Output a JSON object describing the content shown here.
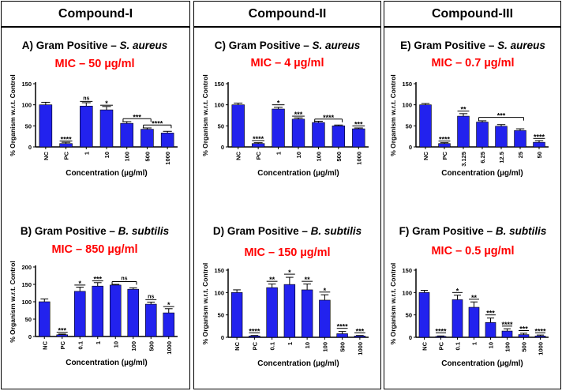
{
  "columns": [
    {
      "header": "Compound-I"
    },
    {
      "header": "Compound-II"
    },
    {
      "header": "Compound-III"
    }
  ],
  "colors": {
    "bar": "#2222ee",
    "mic": "#ff0000",
    "axis": "#000000"
  },
  "chart_data": [
    {
      "type": "bar",
      "title_prefix": "A) Gram Positive – ",
      "organism": "S. aureus",
      "subtitle": "MIC – 50 µg/ml",
      "xlabel": "Concentration (µg/ml)",
      "ylabel": "% Organism w.r.t. Control",
      "categories": [
        "NC",
        "PC",
        "1",
        "10",
        "100",
        "500",
        "1000"
      ],
      "values": [
        100,
        8,
        97,
        88,
        56,
        42,
        33
      ],
      "errors": [
        6,
        3,
        8,
        8,
        4,
        3,
        4
      ],
      "ylim": [
        0,
        150
      ],
      "yticks": [
        0,
        50,
        100,
        150
      ],
      "annotations": [
        {
          "label": "****",
          "at": 1,
          "y": 14
        },
        {
          "label": "ns",
          "at": 2,
          "y": 108
        },
        {
          "label": "*",
          "at": 3,
          "y": 99
        },
        {
          "label": "***",
          "from": 4,
          "to": 5,
          "y": 67
        },
        {
          "label": "****",
          "from": 5,
          "to": 6,
          "y": 52
        }
      ]
    },
    {
      "type": "bar",
      "title_prefix": "C) Gram Positive – ",
      "organism": "S. aureus",
      "subtitle": "MIC – 4 µg/ml",
      "xlabel": "Concentration (µg/ml)",
      "ylabel": "% Organism w.r.t. Control",
      "categories": [
        "NC",
        "PC",
        "1",
        "10",
        "100",
        "500",
        "1000"
      ],
      "values": [
        100,
        8,
        90,
        66,
        58,
        50,
        43
      ],
      "errors": [
        4,
        2,
        4,
        3,
        3,
        2,
        2
      ],
      "ylim": [
        0,
        150
      ],
      "yticks": [
        0,
        50,
        100,
        150
      ],
      "annotations": [
        {
          "label": "****",
          "at": 1,
          "y": 15
        },
        {
          "label": "*",
          "at": 2,
          "y": 100
        },
        {
          "label": "***",
          "at": 3,
          "y": 73
        },
        {
          "label": "****",
          "from": 4,
          "to": 5,
          "y": 66
        },
        {
          "label": "***",
          "at": 6,
          "y": 50
        }
      ]
    },
    {
      "type": "bar",
      "title_prefix": "E) Gram Positive – ",
      "organism": "S. aureus",
      "subtitle": "MIC – 0.7 µg/ml",
      "xlabel": "Concentration (µg/ml)",
      "ylabel": "% Organism w.r.t. Control",
      "categories": [
        "NC",
        "PC",
        "3.125",
        "6.25",
        "12.5",
        "25",
        "50"
      ],
      "values": [
        100,
        8,
        73,
        59,
        49,
        39,
        11
      ],
      "errors": [
        3,
        2,
        6,
        3,
        4,
        4,
        4
      ],
      "ylim": [
        0,
        150
      ],
      "yticks": [
        0,
        50,
        100,
        150
      ],
      "annotations": [
        {
          "label": "****",
          "at": 1,
          "y": 14
        },
        {
          "label": "**",
          "at": 2,
          "y": 85
        },
        {
          "label": "***",
          "from": 3,
          "to": 5,
          "y": 70
        },
        {
          "label": "****",
          "at": 6,
          "y": 20
        }
      ]
    },
    {
      "type": "bar",
      "title_prefix": "B) Gram Positive – ",
      "organism": "B. subtilis",
      "subtitle": "MIC – 850 µg/ml",
      "xlabel": "Concentration (µg/ml)",
      "ylabel": "% Organism w.r.t. Control",
      "categories": [
        "NC",
        "PC",
        "0.1",
        "1",
        "10",
        "100",
        "500",
        "1000"
      ],
      "values": [
        100,
        5,
        130,
        145,
        148,
        136,
        93,
        68
      ],
      "errors": [
        8,
        2,
        12,
        10,
        2,
        4,
        6,
        12
      ],
      "ylim": [
        0,
        200
      ],
      "yticks": [
        0,
        50,
        100,
        150,
        200
      ],
      "annotations": [
        {
          "label": "***",
          "at": 1,
          "y": 12
        },
        {
          "label": "*",
          "at": 2,
          "y": 148
        },
        {
          "label": "***",
          "at": 3,
          "y": 160
        },
        {
          "label": "ns",
          "from": 4,
          "to": 5,
          "y": 158
        },
        {
          "label": "ns",
          "at": 6,
          "y": 106
        },
        {
          "label": "*",
          "at": 7,
          "y": 86
        }
      ]
    },
    {
      "type": "bar",
      "title_prefix": "D) Gram Positive – ",
      "organism": "B. subtilis",
      "subtitle": "MIC – 150 µg/ml",
      "xlabel": "Concentration (µg/ml)",
      "ylabel": "% Organism w.r.t. Control",
      "categories": [
        "NC",
        "PC",
        "0.1",
        "1",
        "10",
        "100",
        "500",
        "1000"
      ],
      "values": [
        100,
        3,
        111,
        118,
        106,
        83,
        8,
        3
      ],
      "errors": [
        6,
        1,
        8,
        16,
        13,
        12,
        5,
        1
      ],
      "ylim": [
        0,
        150
      ],
      "yticks": [
        0,
        50,
        100,
        150
      ],
      "annotations": [
        {
          "label": "****",
          "at": 1,
          "y": 10
        },
        {
          "label": "**",
          "at": 2,
          "y": 125
        },
        {
          "label": "*",
          "at": 3,
          "y": 141
        },
        {
          "label": "**",
          "at": 4,
          "y": 125
        },
        {
          "label": "*",
          "at": 5,
          "y": 101
        },
        {
          "label": "****",
          "at": 6,
          "y": 20
        },
        {
          "label": "***",
          "at": 7,
          "y": 10
        }
      ]
    },
    {
      "type": "bar",
      "title_prefix": "F) Gram Positive – ",
      "organism": "B. subtilis",
      "subtitle": "MIC – 0.5 µg/ml",
      "xlabel": "Concentration (µg/ml)",
      "ylabel": "% Organism w.r.t. Control",
      "categories": [
        "NC",
        "PC",
        "0.1",
        "1",
        "10",
        "100",
        "500",
        "1000"
      ],
      "values": [
        100,
        2,
        84,
        67,
        33,
        14,
        6,
        3
      ],
      "errors": [
        5,
        1,
        10,
        12,
        10,
        5,
        3,
        2
      ],
      "ylim": [
        0,
        150
      ],
      "yticks": [
        0,
        50,
        100,
        150
      ],
      "annotations": [
        {
          "label": "****",
          "at": 1,
          "y": 10
        },
        {
          "label": "*",
          "at": 2,
          "y": 100
        },
        {
          "label": "**",
          "at": 3,
          "y": 85
        },
        {
          "label": "***",
          "at": 4,
          "y": 50
        },
        {
          "label": "****",
          "at": 5,
          "y": 25
        },
        {
          "label": "***",
          "at": 6,
          "y": 15
        },
        {
          "label": "****",
          "at": 7,
          "y": 10
        }
      ]
    }
  ]
}
